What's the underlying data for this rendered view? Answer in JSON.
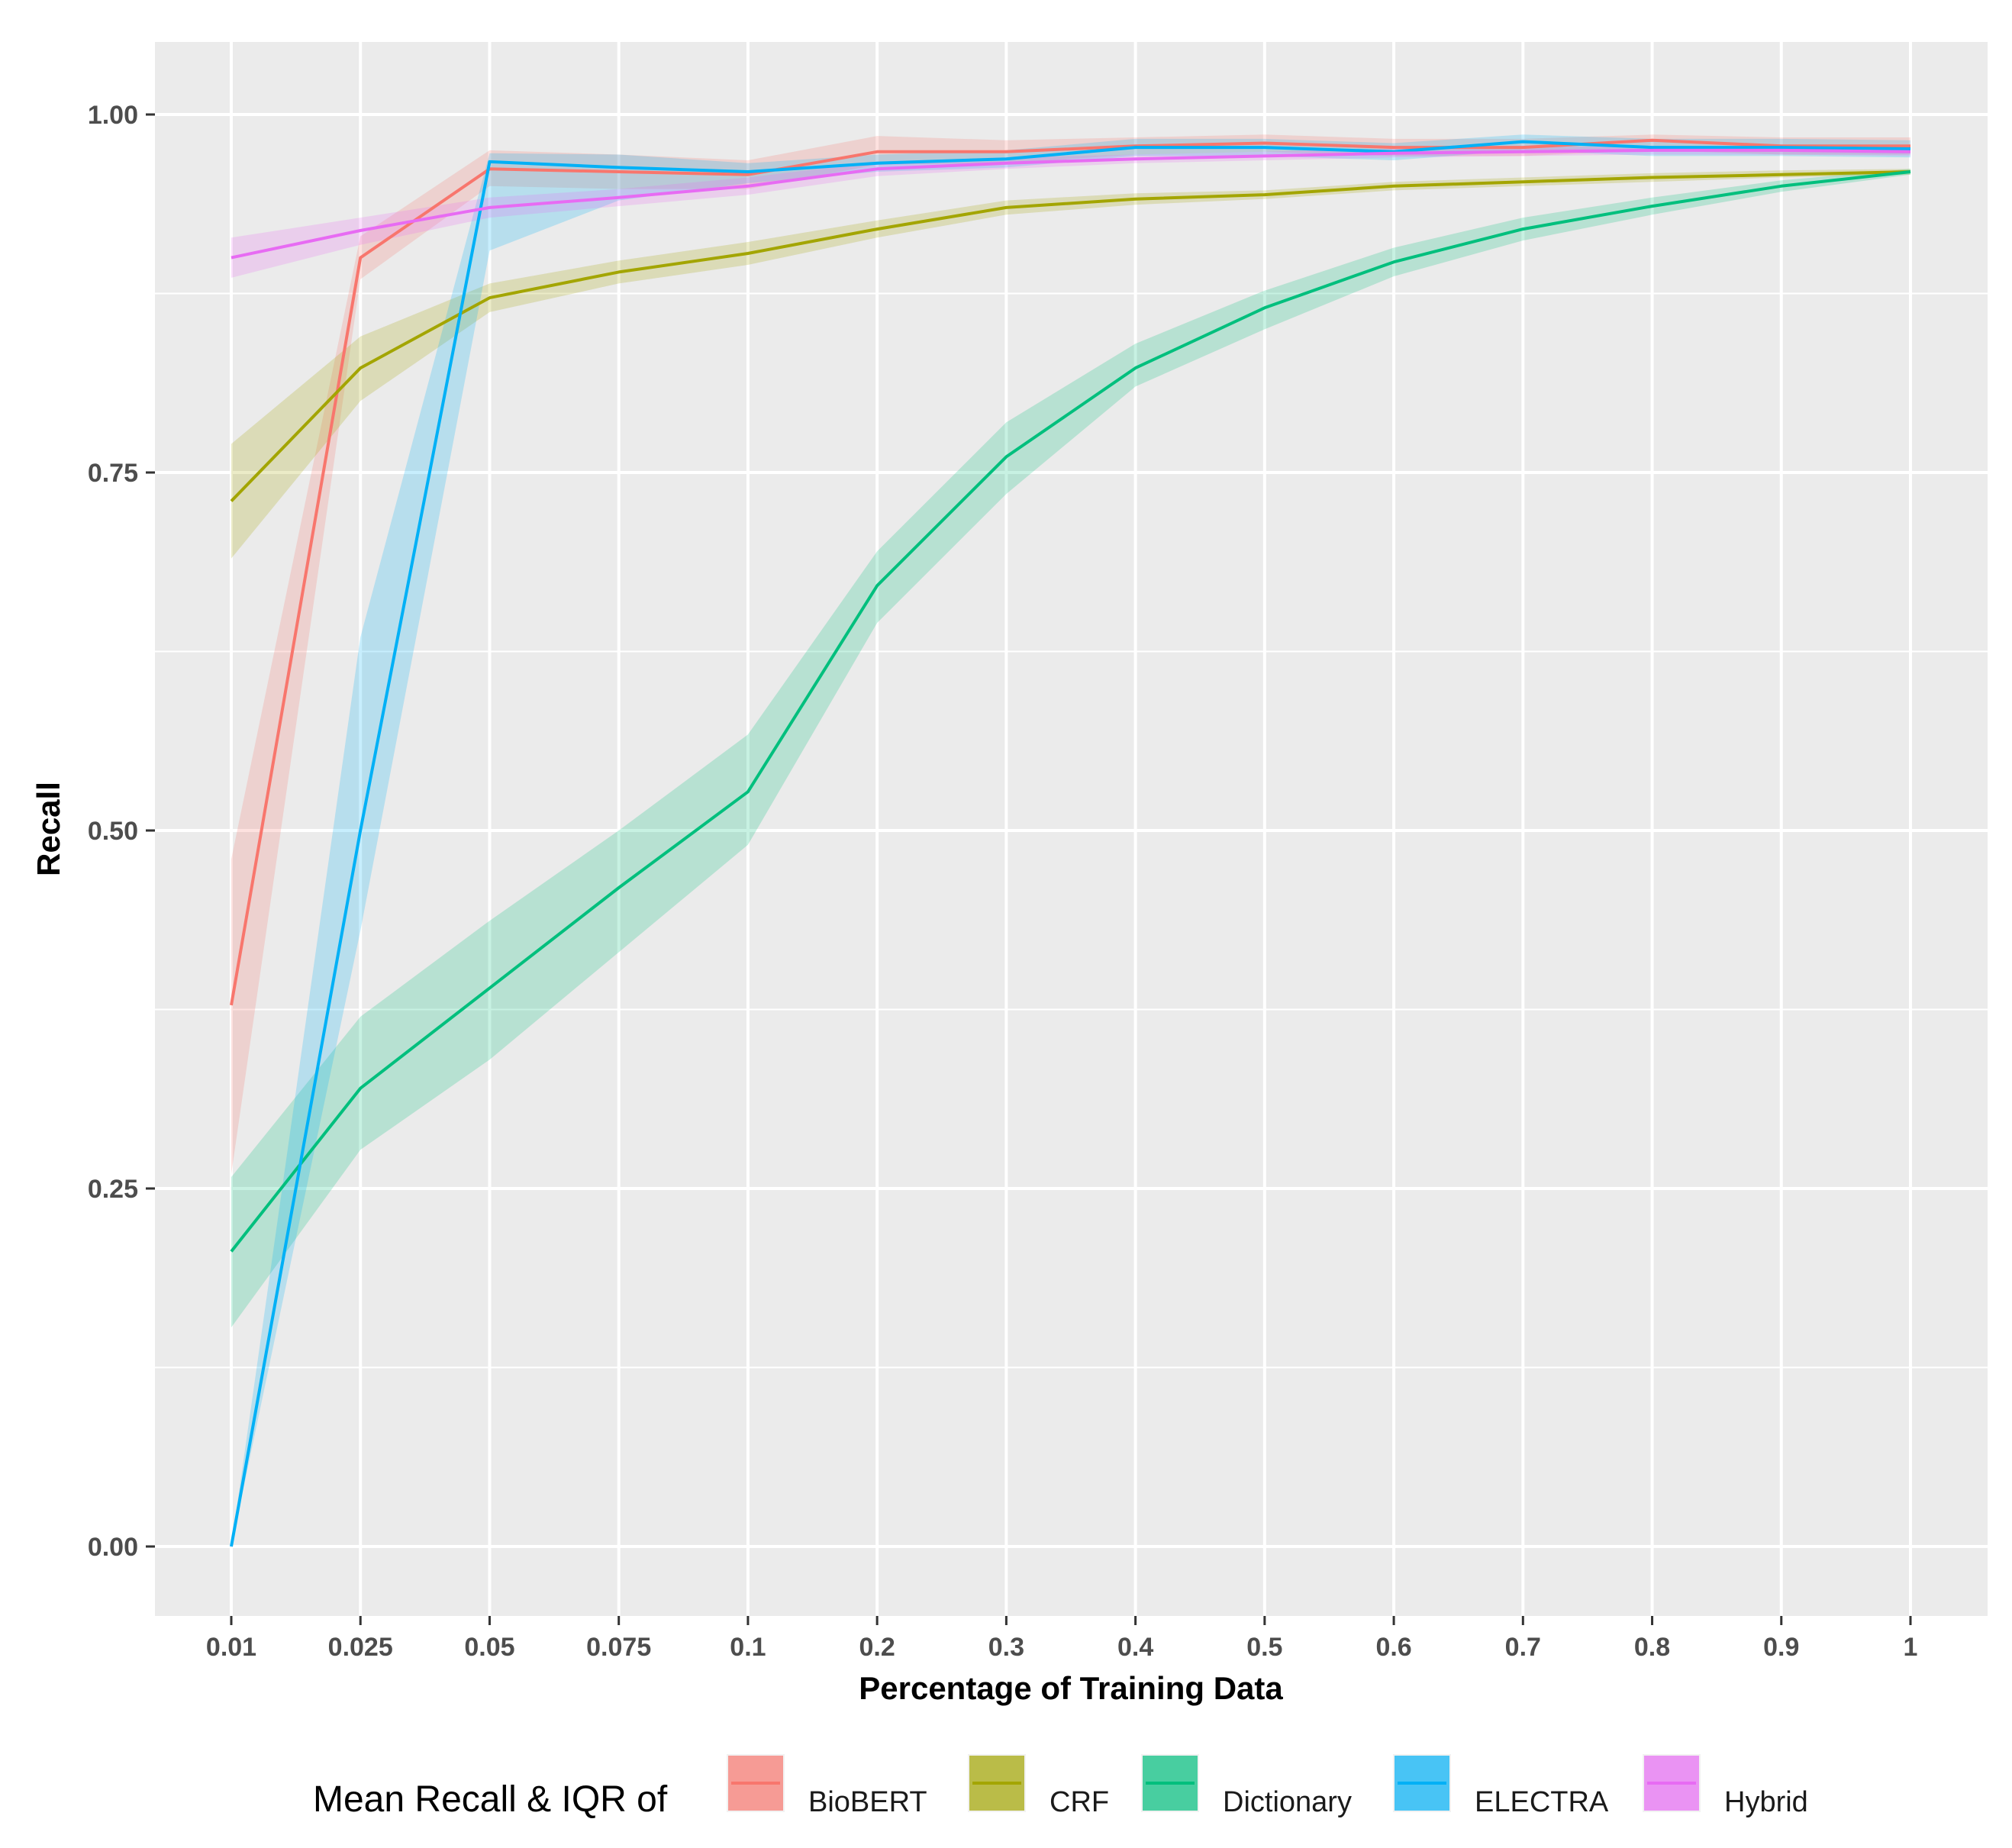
{
  "chart_data": {
    "type": "line",
    "title": "",
    "xlabel": "Percentage of Training Data",
    "ylabel": "Recall",
    "ylim": [
      -0.09,
      1.05
    ],
    "yticks": [
      "0.00",
      "0.25",
      "0.50",
      "0.75",
      "1.00"
    ],
    "y_minor_ticks": [
      0.125,
      0.375,
      0.625,
      0.875
    ],
    "grid": true,
    "categories": [
      "0.01",
      "0.025",
      "0.05",
      "0.075",
      "0.1",
      "0.2",
      "0.3",
      "0.4",
      "0.5",
      "0.6",
      "0.7",
      "0.8",
      "0.9",
      "1"
    ],
    "legend": {
      "title": "Mean Recall & IQR of",
      "position": "bottom"
    },
    "panel_background": "#ebebeb",
    "grid_color": "#ffffff",
    "series": [
      {
        "name": "BioBERT",
        "color": "#F8766D",
        "values": [
          0.378,
          0.9,
          0.962,
          0.96,
          0.958,
          0.974,
          0.974,
          0.978,
          0.98,
          0.977,
          0.977,
          0.982,
          0.978,
          0.978
        ],
        "lower": [
          0.26,
          0.885,
          0.95,
          0.948,
          0.948,
          0.965,
          0.966,
          0.972,
          0.974,
          0.971,
          0.971,
          0.975,
          0.972,
          0.972
        ],
        "upper": [
          0.48,
          0.915,
          0.975,
          0.972,
          0.968,
          0.985,
          0.982,
          0.984,
          0.986,
          0.983,
          0.983,
          0.986,
          0.984,
          0.984
        ]
      },
      {
        "name": "CRF",
        "color": "#A3A500",
        "values": [
          0.73,
          0.823,
          0.872,
          0.89,
          0.903,
          0.92,
          0.935,
          0.941,
          0.944,
          0.95,
          0.953,
          0.956,
          0.958,
          0.96
        ],
        "lower": [
          0.69,
          0.8,
          0.862,
          0.882,
          0.895,
          0.914,
          0.93,
          0.937,
          0.941,
          0.947,
          0.95,
          0.953,
          0.956,
          0.958
        ],
        "upper": [
          0.77,
          0.845,
          0.882,
          0.898,
          0.911,
          0.926,
          0.94,
          0.945,
          0.947,
          0.953,
          0.956,
          0.959,
          0.961,
          0.962
        ]
      },
      {
        "name": "Dictionary",
        "color": "#00BF7D",
        "values": [
          0.206,
          0.32,
          0.39,
          0.46,
          0.527,
          0.671,
          0.761,
          0.823,
          0.865,
          0.897,
          0.92,
          0.936,
          0.95,
          0.96
        ],
        "lower": [
          0.153,
          0.277,
          0.34,
          0.415,
          0.49,
          0.645,
          0.735,
          0.81,
          0.85,
          0.887,
          0.912,
          0.93,
          0.946,
          0.958
        ],
        "upper": [
          0.258,
          0.37,
          0.437,
          0.5,
          0.567,
          0.695,
          0.785,
          0.84,
          0.877,
          0.907,
          0.928,
          0.942,
          0.954,
          0.962
        ]
      },
      {
        "name": "ELECTRA",
        "color": "#00B0F6",
        "values": [
          0.0,
          0.5,
          0.967,
          0.963,
          0.96,
          0.966,
          0.969,
          0.977,
          0.977,
          0.974,
          0.981,
          0.977,
          0.977,
          0.976
        ],
        "lower": [
          0.0,
          0.43,
          0.905,
          0.94,
          0.952,
          0.96,
          0.963,
          0.971,
          0.971,
          0.968,
          0.975,
          0.971,
          0.971,
          0.97
        ],
        "upper": [
          0.0,
          0.635,
          0.973,
          0.972,
          0.966,
          0.972,
          0.975,
          0.983,
          0.983,
          0.98,
          0.986,
          0.983,
          0.983,
          0.982
        ]
      },
      {
        "name": "Hybrid",
        "color": "#E76BF3",
        "values": [
          0.9,
          0.919,
          0.935,
          0.942,
          0.95,
          0.962,
          0.966,
          0.969,
          0.971,
          0.973,
          0.974,
          0.975,
          0.975,
          0.974
        ],
        "lower": [
          0.886,
          0.909,
          0.928,
          0.936,
          0.944,
          0.957,
          0.962,
          0.966,
          0.968,
          0.97,
          0.971,
          0.972,
          0.972,
          0.971
        ],
        "upper": [
          0.914,
          0.928,
          0.942,
          0.948,
          0.956,
          0.967,
          0.97,
          0.972,
          0.974,
          0.976,
          0.977,
          0.978,
          0.978,
          0.977
        ]
      }
    ]
  }
}
